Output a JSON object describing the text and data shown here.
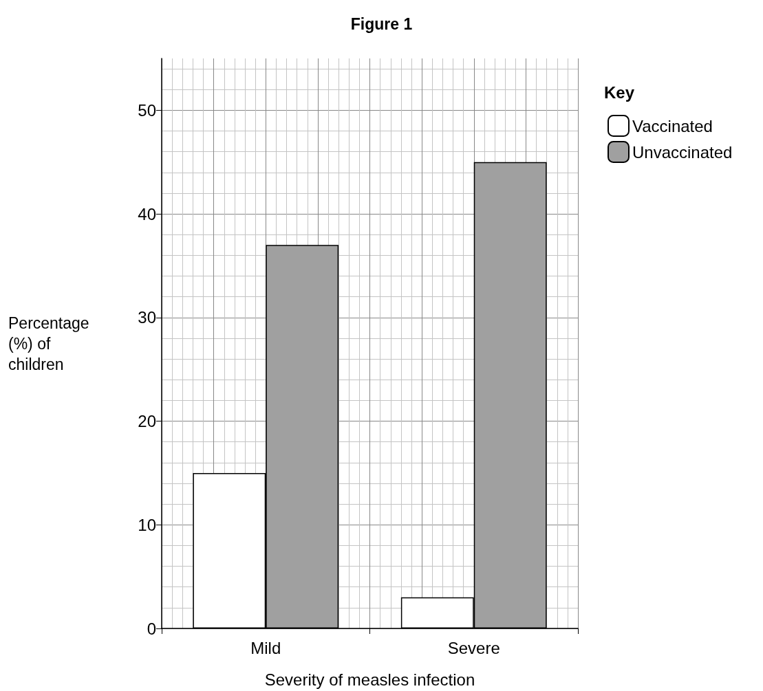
{
  "chart_data": {
    "type": "bar",
    "title": "Figure 1",
    "xlabel": "Severity of measles infection",
    "ylabel": "Percentage (%) of children",
    "legend_title": "Key",
    "categories": [
      "Mild",
      "Severe"
    ],
    "series": [
      {
        "name": "Vaccinated",
        "color": "#ffffff",
        "values": [
          15,
          3
        ]
      },
      {
        "name": "Unvaccinated",
        "color": "#a0a0a0",
        "values": [
          37,
          45
        ]
      }
    ],
    "ylim": [
      0,
      55
    ],
    "yticks": [
      0,
      10,
      20,
      30,
      40,
      50
    ],
    "grid": true,
    "legend": "top right"
  }
}
